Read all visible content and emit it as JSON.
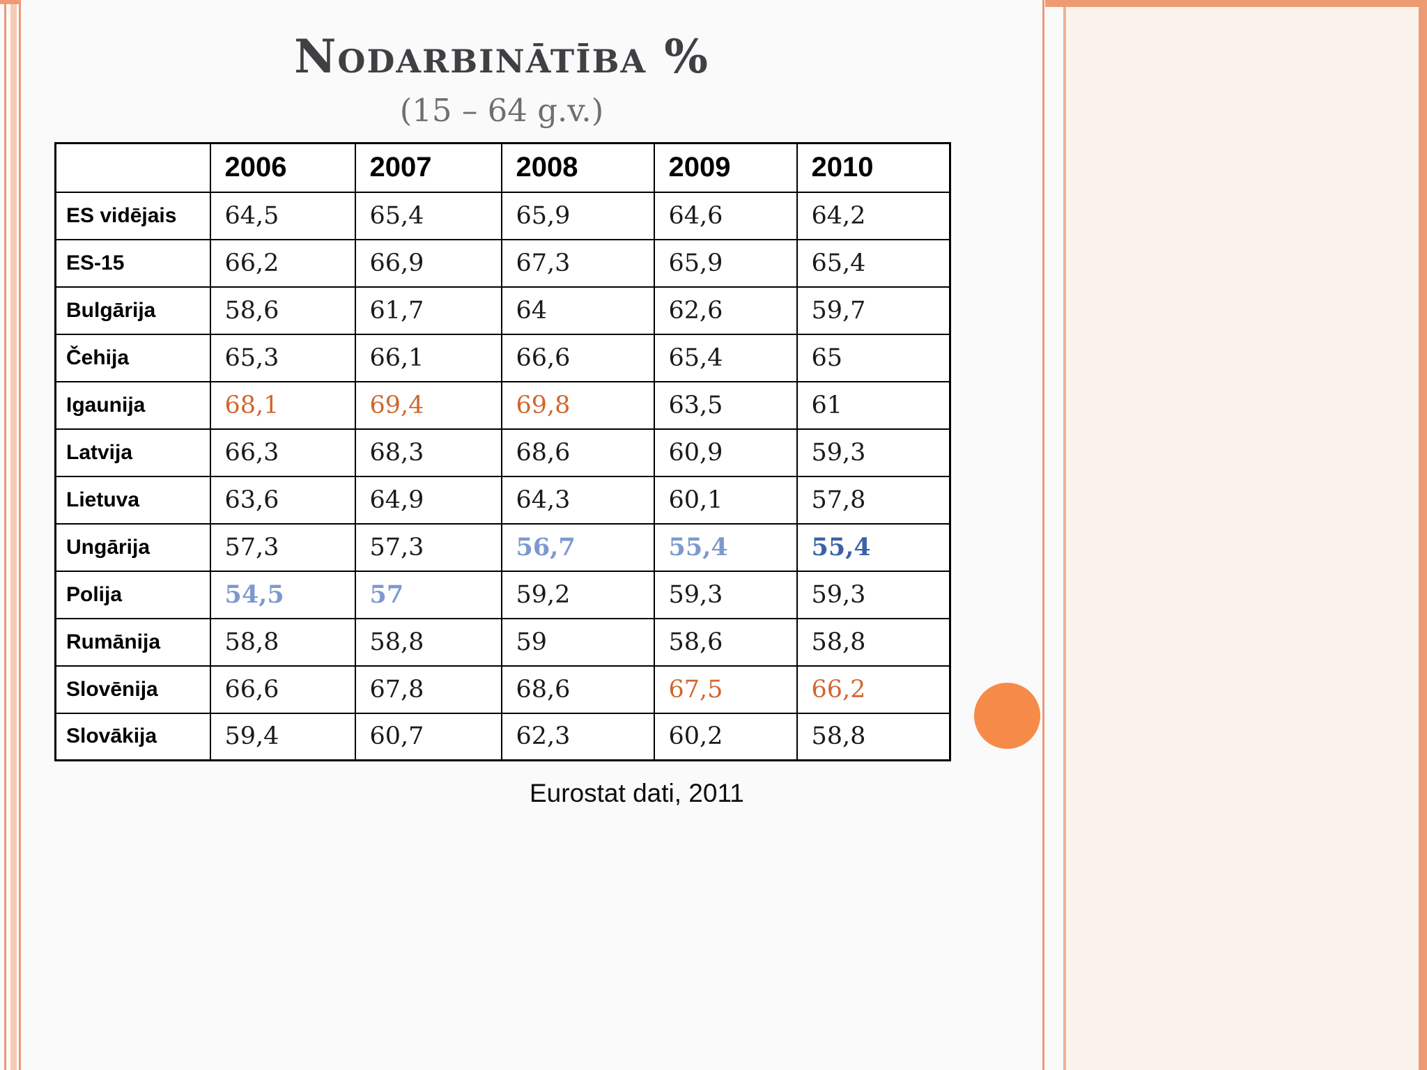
{
  "slide": {
    "title": "Nodarbinātība %",
    "subtitle": "(15 – 64 g.v.)",
    "caption": "Eurostat dati, 2011"
  },
  "colors": {
    "orange": "#cf6630",
    "blue": "#7d99ce",
    "blue_dark": "#3c61a6",
    "accent_circle": "#f68b49",
    "stripe": "#ee9b73"
  },
  "table": {
    "header": [
      "",
      "2006",
      "2007",
      "2008",
      "2009",
      "2010"
    ],
    "rows": [
      {
        "label": "ES vidējais",
        "values": [
          "64,5",
          "65,4",
          "65,9",
          "64,6",
          "64,2"
        ],
        "styles": [
          null,
          null,
          null,
          null,
          null
        ]
      },
      {
        "label": "ES-15",
        "values": [
          "66,2",
          "66,9",
          "67,3",
          "65,9",
          "65,4"
        ],
        "styles": [
          null,
          null,
          null,
          null,
          null
        ]
      },
      {
        "label": "Bulgārija",
        "values": [
          "58,6",
          "61,7",
          "64",
          "62,6",
          "59,7"
        ],
        "styles": [
          null,
          null,
          null,
          null,
          null
        ]
      },
      {
        "label": "Čehija",
        "values": [
          "65,3",
          "66,1",
          "66,6",
          "65,4",
          "65"
        ],
        "styles": [
          null,
          null,
          null,
          null,
          null
        ]
      },
      {
        "label": "Igaunija",
        "values": [
          "68,1",
          "69,4",
          "69,8",
          "63,5",
          "61"
        ],
        "styles": [
          "orange",
          "orange",
          "orange",
          null,
          null
        ]
      },
      {
        "label": "Latvija",
        "values": [
          "66,3",
          "68,3",
          "68,6",
          "60,9",
          "59,3"
        ],
        "styles": [
          null,
          null,
          null,
          null,
          null
        ]
      },
      {
        "label": "Lietuva",
        "values": [
          "63,6",
          "64,9",
          "64,3",
          "60,1",
          "57,8"
        ],
        "styles": [
          null,
          null,
          null,
          null,
          null
        ]
      },
      {
        "label": "Ungārija",
        "values": [
          "57,3",
          "57,3",
          "56,7",
          "55,4",
          "55,4"
        ],
        "styles": [
          null,
          null,
          "blue",
          "blue",
          "blue_dark"
        ]
      },
      {
        "label": "Polija",
        "values": [
          "54,5",
          "57",
          "59,2",
          "59,3",
          "59,3"
        ],
        "styles": [
          "blue",
          "blue",
          null,
          null,
          null
        ]
      },
      {
        "label": "Rumānija",
        "values": [
          "58,8",
          "58,8",
          "59",
          "58,6",
          "58,8"
        ],
        "styles": [
          null,
          null,
          null,
          null,
          null
        ]
      },
      {
        "label": "Slovēnija",
        "values": [
          "66,6",
          "67,8",
          "68,6",
          "67,5",
          "66,2"
        ],
        "styles": [
          null,
          null,
          null,
          "orange",
          "orange"
        ]
      },
      {
        "label": "Slovākija",
        "values": [
          "59,4",
          "60,7",
          "62,3",
          "60,2",
          "58,8"
        ],
        "styles": [
          null,
          null,
          null,
          null,
          null
        ]
      }
    ]
  }
}
